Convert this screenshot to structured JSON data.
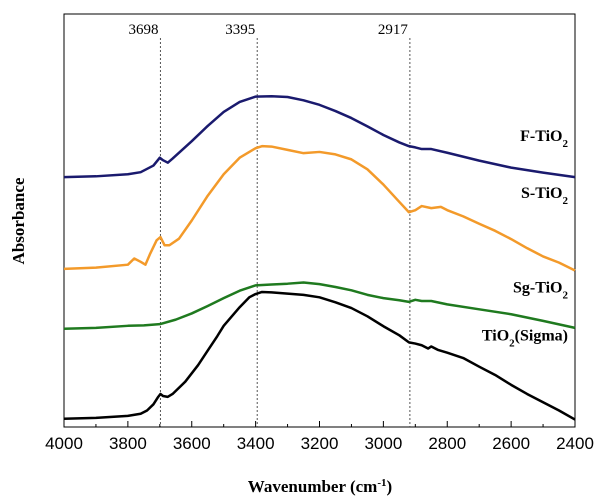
{
  "chart_data": {
    "type": "line",
    "xlabel": {
      "main": "Wavenumber (cm",
      "sup": "-1",
      "close": ")"
    },
    "ylabel": "Absorbance",
    "xlim": [
      4000,
      2400
    ],
    "x_reversed": true,
    "ylim": [
      0,
      1
    ],
    "y_ticks_shown": false,
    "x_ticks": [
      4000,
      3800,
      3600,
      3400,
      3200,
      3000,
      2800,
      2600,
      2400
    ],
    "annotations": [
      {
        "value": 3698,
        "label": "3698"
      },
      {
        "value": 3395,
        "label": "3395"
      },
      {
        "value": 2917,
        "label": "2917"
      }
    ],
    "series": [
      {
        "name": "F-TiO2",
        "label": {
          "main": "F-TiO",
          "sub": "2",
          "tail": ""
        },
        "color": "#1a1a6e",
        "points": [
          [
            4000,
            0.605
          ],
          [
            3900,
            0.607
          ],
          [
            3800,
            0.612
          ],
          [
            3760,
            0.617
          ],
          [
            3720,
            0.633
          ],
          [
            3700,
            0.652
          ],
          [
            3690,
            0.646
          ],
          [
            3675,
            0.64
          ],
          [
            3660,
            0.65
          ],
          [
            3600,
            0.692
          ],
          [
            3550,
            0.729
          ],
          [
            3500,
            0.763
          ],
          [
            3450,
            0.787
          ],
          [
            3400,
            0.8
          ],
          [
            3350,
            0.801
          ],
          [
            3300,
            0.799
          ],
          [
            3250,
            0.791
          ],
          [
            3200,
            0.78
          ],
          [
            3150,
            0.765
          ],
          [
            3100,
            0.748
          ],
          [
            3050,
            0.728
          ],
          [
            3000,
            0.707
          ],
          [
            2950,
            0.689
          ],
          [
            2920,
            0.68
          ],
          [
            2900,
            0.677
          ],
          [
            2880,
            0.673
          ],
          [
            2850,
            0.673
          ],
          [
            2800,
            0.664
          ],
          [
            2700,
            0.645
          ],
          [
            2600,
            0.628
          ],
          [
            2500,
            0.616
          ],
          [
            2400,
            0.605
          ]
        ]
      },
      {
        "name": "S-TiO2",
        "label": {
          "main": "S-TiO",
          "sub": "2",
          "tail": ""
        },
        "color": "#f39a2a",
        "points": [
          [
            4000,
            0.383
          ],
          [
            3900,
            0.386
          ],
          [
            3800,
            0.393
          ],
          [
            3780,
            0.408
          ],
          [
            3760,
            0.4
          ],
          [
            3745,
            0.393
          ],
          [
            3730,
            0.42
          ],
          [
            3710,
            0.452
          ],
          [
            3698,
            0.46
          ],
          [
            3685,
            0.44
          ],
          [
            3670,
            0.44
          ],
          [
            3640,
            0.456
          ],
          [
            3600,
            0.5
          ],
          [
            3550,
            0.56
          ],
          [
            3500,
            0.612
          ],
          [
            3450,
            0.652
          ],
          [
            3400,
            0.675
          ],
          [
            3380,
            0.68
          ],
          [
            3350,
            0.679
          ],
          [
            3300,
            0.671
          ],
          [
            3250,
            0.663
          ],
          [
            3200,
            0.666
          ],
          [
            3150,
            0.66
          ],
          [
            3100,
            0.648
          ],
          [
            3050,
            0.624
          ],
          [
            3000,
            0.587
          ],
          [
            2950,
            0.545
          ],
          [
            2920,
            0.52
          ],
          [
            2900,
            0.525
          ],
          [
            2880,
            0.535
          ],
          [
            2850,
            0.53
          ],
          [
            2820,
            0.533
          ],
          [
            2800,
            0.525
          ],
          [
            2750,
            0.51
          ],
          [
            2700,
            0.492
          ],
          [
            2650,
            0.475
          ],
          [
            2600,
            0.455
          ],
          [
            2550,
            0.433
          ],
          [
            2500,
            0.413
          ],
          [
            2450,
            0.398
          ],
          [
            2400,
            0.379
          ]
        ]
      },
      {
        "name": "Sg-TiO2",
        "label": {
          "main": "Sg-TiO",
          "sub": "2",
          "tail": ""
        },
        "color": "#1f7a1f",
        "points": [
          [
            4000,
            0.238
          ],
          [
            3900,
            0.24
          ],
          [
            3800,
            0.245
          ],
          [
            3750,
            0.246
          ],
          [
            3700,
            0.249
          ],
          [
            3650,
            0.26
          ],
          [
            3600,
            0.275
          ],
          [
            3550,
            0.293
          ],
          [
            3500,
            0.312
          ],
          [
            3450,
            0.33
          ],
          [
            3400,
            0.343
          ],
          [
            3350,
            0.345
          ],
          [
            3300,
            0.347
          ],
          [
            3250,
            0.35
          ],
          [
            3200,
            0.346
          ],
          [
            3150,
            0.339
          ],
          [
            3100,
            0.331
          ],
          [
            3050,
            0.32
          ],
          [
            3000,
            0.312
          ],
          [
            2950,
            0.307
          ],
          [
            2920,
            0.303
          ],
          [
            2900,
            0.308
          ],
          [
            2880,
            0.305
          ],
          [
            2850,
            0.305
          ],
          [
            2800,
            0.297
          ],
          [
            2700,
            0.285
          ],
          [
            2600,
            0.273
          ],
          [
            2500,
            0.257
          ],
          [
            2400,
            0.24
          ]
        ]
      },
      {
        "name": "TiO2(Sigma)",
        "label": {
          "main": "TiO",
          "sub": "2",
          "tail": "(Sigma)"
        },
        "color": "#000000",
        "points": [
          [
            4000,
            0.02
          ],
          [
            3900,
            0.022
          ],
          [
            3800,
            0.027
          ],
          [
            3760,
            0.032
          ],
          [
            3740,
            0.04
          ],
          [
            3720,
            0.055
          ],
          [
            3705,
            0.073
          ],
          [
            3698,
            0.08
          ],
          [
            3690,
            0.075
          ],
          [
            3675,
            0.073
          ],
          [
            3660,
            0.08
          ],
          [
            3620,
            0.11
          ],
          [
            3580,
            0.15
          ],
          [
            3550,
            0.185
          ],
          [
            3520,
            0.22
          ],
          [
            3500,
            0.245
          ],
          [
            3450,
            0.29
          ],
          [
            3420,
            0.314
          ],
          [
            3400,
            0.322
          ],
          [
            3380,
            0.327
          ],
          [
            3350,
            0.326
          ],
          [
            3300,
            0.323
          ],
          [
            3250,
            0.32
          ],
          [
            3200,
            0.314
          ],
          [
            3150,
            0.302
          ],
          [
            3100,
            0.288
          ],
          [
            3050,
            0.268
          ],
          [
            3000,
            0.244
          ],
          [
            2950,
            0.222
          ],
          [
            2920,
            0.205
          ],
          [
            2900,
            0.202
          ],
          [
            2880,
            0.198
          ],
          [
            2860,
            0.19
          ],
          [
            2850,
            0.195
          ],
          [
            2830,
            0.187
          ],
          [
            2800,
            0.18
          ],
          [
            2750,
            0.167
          ],
          [
            2700,
            0.146
          ],
          [
            2650,
            0.126
          ],
          [
            2600,
            0.102
          ],
          [
            2550,
            0.08
          ],
          [
            2500,
            0.06
          ],
          [
            2450,
            0.04
          ],
          [
            2400,
            0.018
          ]
        ]
      }
    ]
  }
}
